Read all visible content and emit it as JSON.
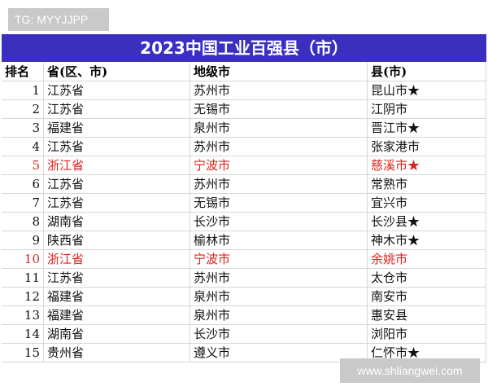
{
  "watermark_top": "TG: MYYJJPP",
  "watermark_bottom": "www.shliangwei.com",
  "table": {
    "title": "2023中国工业百强县（市）",
    "title_background": "#3b2fc0",
    "header": [
      "排名",
      "省(区、市)",
      "地级市",
      "县(市)"
    ],
    "rows": [
      {
        "cells": [
          "1",
          "江苏省",
          "苏州市",
          "昆山市★"
        ],
        "color": "#111111"
      },
      {
        "cells": [
          "2",
          "江苏省",
          "无锡市",
          "江阴市"
        ],
        "color": "#111111"
      },
      {
        "cells": [
          "3",
          "福建省",
          "泉州市",
          "晋江市★"
        ],
        "color": "#111111"
      },
      {
        "cells": [
          "4",
          "江苏省",
          "苏州市",
          "张家港市"
        ],
        "color": "#111111"
      },
      {
        "cells": [
          "5",
          "浙江省",
          "宁波市",
          "慈溪市★"
        ],
        "color": "#d9231f"
      },
      {
        "cells": [
          "6",
          "江苏省",
          "苏州市",
          "常熟市"
        ],
        "color": "#111111"
      },
      {
        "cells": [
          "7",
          "江苏省",
          "无锡市",
          "宜兴市"
        ],
        "color": "#111111"
      },
      {
        "cells": [
          "8",
          "湖南省",
          "长沙市",
          "长沙县★"
        ],
        "color": "#111111"
      },
      {
        "cells": [
          "9",
          "陕西省",
          "榆林市",
          "神木市★"
        ],
        "color": "#111111"
      },
      {
        "cells": [
          "10",
          "浙江省",
          "宁波市",
          "余姚市"
        ],
        "color": "#d9231f"
      },
      {
        "cells": [
          "11",
          "江苏省",
          "苏州市",
          "太仓市"
        ],
        "color": "#111111"
      },
      {
        "cells": [
          "12",
          "福建省",
          "泉州市",
          "南安市"
        ],
        "color": "#111111"
      },
      {
        "cells": [
          "13",
          "福建省",
          "泉州市",
          "惠安县"
        ],
        "color": "#111111"
      },
      {
        "cells": [
          "14",
          "湖南省",
          "长沙市",
          "浏阳市"
        ],
        "color": "#111111"
      },
      {
        "cells": [
          "15",
          "贵州省",
          "遵义市",
          "仁怀市★"
        ],
        "color": "#111111"
      }
    ]
  }
}
